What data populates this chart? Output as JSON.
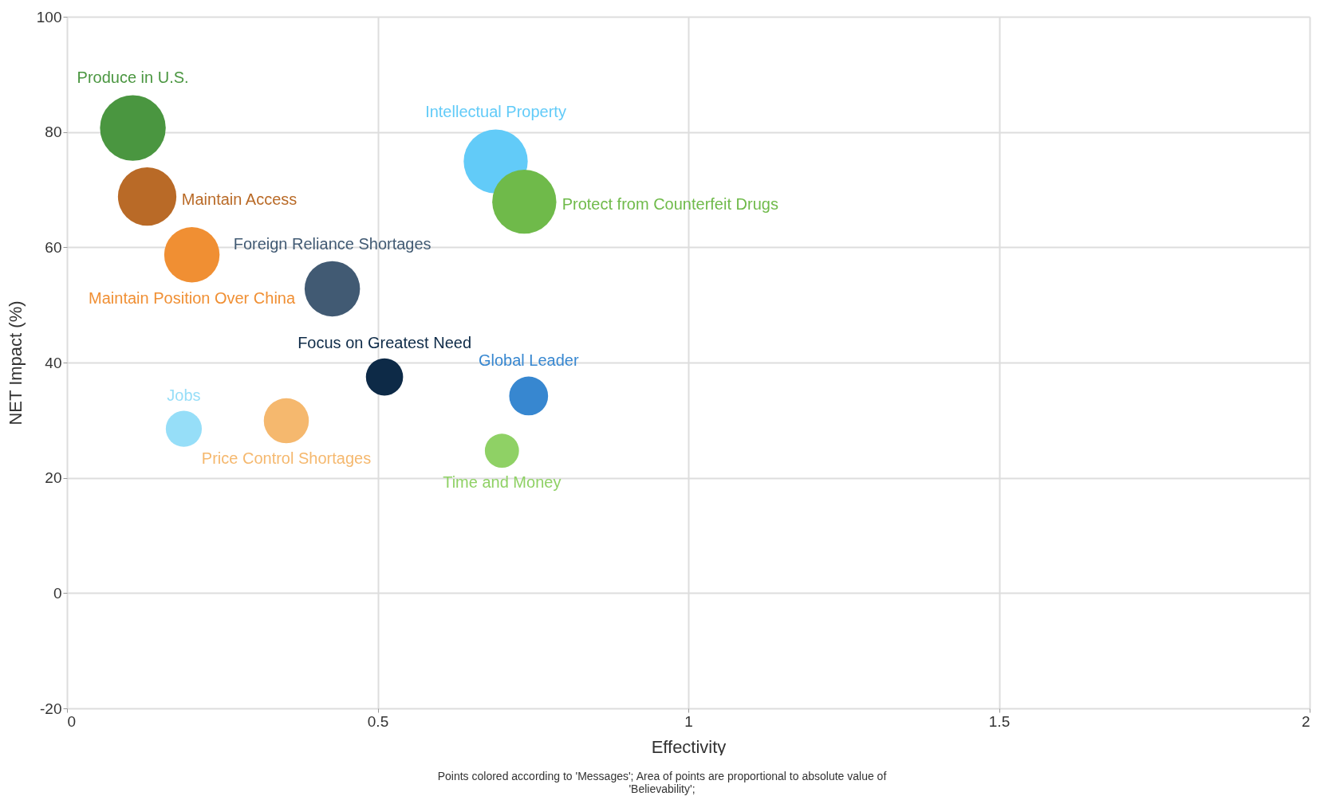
{
  "chart_data": {
    "type": "bubble",
    "xlabel": "Effectivity",
    "ylabel": "NET Impact (%)",
    "xlim": [
      0,
      2
    ],
    "xticks": [
      0,
      0.5,
      1,
      1.5,
      2
    ],
    "ylim": [
      -20,
      100
    ],
    "yticks": [
      -20,
      0,
      20,
      40,
      60,
      80,
      100
    ],
    "grid": true,
    "legend": false,
    "annotations": [
      "Points colored according to 'Messages'; Area of points are proportional to absolute value of 'Believability';"
    ],
    "series": [
      {
        "name": "Produce in U.S.",
        "color": "#4a9640",
        "x": [
          0.106
        ],
        "values": [
          80.7
        ],
        "sizes": [
          1
        ]
      },
      {
        "name": "Maintain Access",
        "color": "#b96a27",
        "x": [
          0.129
        ],
        "values": [
          68.8
        ],
        "sizes": [
          0.79
        ]
      },
      {
        "name": "Maintain Position Over China",
        "color": "#f08f33",
        "x": [
          0.201
        ],
        "values": [
          58.7
        ],
        "sizes": [
          0.71
        ]
      },
      {
        "name": "Foreign Reliance Shortages",
        "color": "#415a73",
        "x": [
          0.427
        ],
        "values": [
          52.8
        ],
        "sizes": [
          0.71
        ]
      },
      {
        "name": "Intellectual Property",
        "color": "#62cbf8",
        "x": [
          0.69
        ],
        "values": [
          74.9
        ],
        "sizes": [
          0.95
        ]
      },
      {
        "name": "Protect from Counterfeit Drugs",
        "color": "#6fba4a",
        "x": [
          0.736
        ],
        "values": [
          67.9
        ],
        "sizes": [
          0.95
        ]
      },
      {
        "name": "Focus on Greatest Need",
        "color": "#0d2a47",
        "x": [
          0.511
        ],
        "values": [
          37.5
        ],
        "sizes": [
          0.32
        ]
      },
      {
        "name": "Global Leader",
        "color": "#3787d0",
        "x": [
          0.743
        ],
        "values": [
          34.2
        ],
        "sizes": [
          0.35
        ]
      },
      {
        "name": "Jobs",
        "color": "#96def8",
        "x": [
          0.188
        ],
        "values": [
          28.5
        ],
        "sizes": [
          0.3
        ]
      },
      {
        "name": "Price Control Shortages",
        "color": "#f5b86e",
        "x": [
          0.353
        ],
        "values": [
          29.9
        ],
        "sizes": [
          0.47
        ]
      },
      {
        "name": "Time and Money",
        "color": "#8fd165",
        "x": [
          0.7
        ],
        "values": [
          24.7
        ],
        "sizes": [
          0.27
        ]
      }
    ]
  }
}
